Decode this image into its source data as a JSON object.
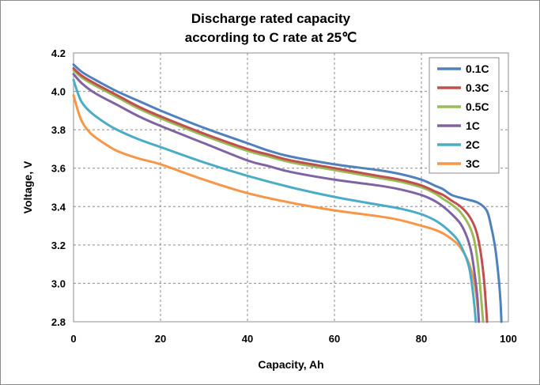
{
  "chart_data": {
    "type": "line",
    "title_line1": "Discharge rated capacity",
    "title_line2": "according to C rate at 25℃",
    "xlabel": "Capacity, Ah",
    "ylabel": "Voltage, V",
    "xlim": [
      0,
      100
    ],
    "ylim": [
      2.8,
      4.2
    ],
    "x_ticks": [
      "0",
      "20",
      "40",
      "60",
      "80",
      "100"
    ],
    "y_ticks": [
      "2.8",
      "3.0",
      "3.2",
      "3.4",
      "3.6",
      "3.8",
      "4.0",
      "4.2"
    ],
    "grid": "dashed",
    "legend_position": "top-right",
    "series": [
      {
        "name": "0.1C",
        "color": "#4f81bd",
        "points": [
          [
            0,
            4.14
          ],
          [
            2,
            4.1
          ],
          [
            5,
            4.06
          ],
          [
            10,
            4.0
          ],
          [
            15,
            3.95
          ],
          [
            20,
            3.9
          ],
          [
            30,
            3.81
          ],
          [
            40,
            3.73
          ],
          [
            45,
            3.69
          ],
          [
            50,
            3.66
          ],
          [
            60,
            3.62
          ],
          [
            70,
            3.59
          ],
          [
            75,
            3.57
          ],
          [
            80,
            3.54
          ],
          [
            83,
            3.51
          ],
          [
            85,
            3.49
          ],
          [
            87,
            3.46
          ],
          [
            90,
            3.44
          ],
          [
            93,
            3.42
          ],
          [
            95,
            3.38
          ],
          [
            96,
            3.3
          ],
          [
            97,
            3.18
          ],
          [
            97.8,
            3.02
          ],
          [
            98.2,
            2.9
          ],
          [
            98.4,
            2.8
          ]
        ]
      },
      {
        "name": "0.3C",
        "color": "#c0504d",
        "points": [
          [
            0,
            4.12
          ],
          [
            2,
            4.08
          ],
          [
            5,
            4.04
          ],
          [
            10,
            3.98
          ],
          [
            15,
            3.92
          ],
          [
            20,
            3.87
          ],
          [
            30,
            3.78
          ],
          [
            40,
            3.7
          ],
          [
            45,
            3.67
          ],
          [
            50,
            3.64
          ],
          [
            60,
            3.6
          ],
          [
            70,
            3.56
          ],
          [
            75,
            3.54
          ],
          [
            80,
            3.51
          ],
          [
            83,
            3.48
          ],
          [
            85,
            3.46
          ],
          [
            87,
            3.43
          ],
          [
            89,
            3.4
          ],
          [
            91,
            3.35
          ],
          [
            92.5,
            3.28
          ],
          [
            93.5,
            3.18
          ],
          [
            94.3,
            3.04
          ],
          [
            94.8,
            2.9
          ],
          [
            95.1,
            2.8
          ]
        ]
      },
      {
        "name": "0.5C",
        "color": "#9bbb59",
        "points": [
          [
            0,
            4.11
          ],
          [
            2,
            4.07
          ],
          [
            5,
            4.03
          ],
          [
            10,
            3.97
          ],
          [
            15,
            3.91
          ],
          [
            20,
            3.86
          ],
          [
            30,
            3.77
          ],
          [
            40,
            3.69
          ],
          [
            45,
            3.66
          ],
          [
            50,
            3.63
          ],
          [
            60,
            3.59
          ],
          [
            70,
            3.55
          ],
          [
            75,
            3.53
          ],
          [
            80,
            3.5
          ],
          [
            83,
            3.47
          ],
          [
            85,
            3.44
          ],
          [
            87,
            3.41
          ],
          [
            89,
            3.37
          ],
          [
            91,
            3.3
          ],
          [
            92.2,
            3.22
          ],
          [
            93.0,
            3.1
          ],
          [
            93.6,
            2.96
          ],
          [
            94.0,
            2.85
          ],
          [
            94.2,
            2.8
          ]
        ]
      },
      {
        "name": "1C",
        "color": "#8064a2",
        "points": [
          [
            0,
            4.09
          ],
          [
            2,
            4.04
          ],
          [
            5,
            3.99
          ],
          [
            10,
            3.93
          ],
          [
            15,
            3.87
          ],
          [
            20,
            3.82
          ],
          [
            30,
            3.73
          ],
          [
            40,
            3.64
          ],
          [
            45,
            3.61
          ],
          [
            50,
            3.58
          ],
          [
            60,
            3.54
          ],
          [
            70,
            3.51
          ],
          [
            75,
            3.49
          ],
          [
            80,
            3.46
          ],
          [
            83,
            3.43
          ],
          [
            85,
            3.4
          ],
          [
            87,
            3.36
          ],
          [
            89,
            3.31
          ],
          [
            90.5,
            3.24
          ],
          [
            91.5,
            3.16
          ],
          [
            92.3,
            3.04
          ],
          [
            92.9,
            2.92
          ],
          [
            93.2,
            2.8
          ]
        ]
      },
      {
        "name": "2C",
        "color": "#4bacc6",
        "points": [
          [
            0,
            4.06
          ],
          [
            1,
            3.99
          ],
          [
            2,
            3.94
          ],
          [
            4,
            3.89
          ],
          [
            7,
            3.84
          ],
          [
            10,
            3.8
          ],
          [
            15,
            3.75
          ],
          [
            20,
            3.71
          ],
          [
            30,
            3.63
          ],
          [
            40,
            3.56
          ],
          [
            50,
            3.5
          ],
          [
            60,
            3.45
          ],
          [
            70,
            3.41
          ],
          [
            75,
            3.39
          ],
          [
            80,
            3.36
          ],
          [
            83,
            3.33
          ],
          [
            85,
            3.3
          ],
          [
            87,
            3.26
          ],
          [
            88.5,
            3.22
          ],
          [
            90,
            3.15
          ],
          [
            91,
            3.08
          ],
          [
            91.7,
            2.98
          ],
          [
            92.2,
            2.88
          ],
          [
            92.5,
            2.8
          ]
        ]
      },
      {
        "name": "3C",
        "color": "#f79646",
        "points": [
          [
            0,
            3.98
          ],
          [
            1,
            3.9
          ],
          [
            2,
            3.84
          ],
          [
            4,
            3.78
          ],
          [
            7,
            3.73
          ],
          [
            10,
            3.69
          ],
          [
            15,
            3.65
          ],
          [
            20,
            3.62
          ],
          [
            30,
            3.54
          ],
          [
            40,
            3.47
          ],
          [
            50,
            3.42
          ],
          [
            60,
            3.38
          ],
          [
            70,
            3.35
          ],
          [
            75,
            3.33
          ],
          [
            80,
            3.3
          ],
          [
            83,
            3.28
          ],
          [
            85,
            3.26
          ],
          [
            87,
            3.23
          ],
          [
            88.5,
            3.2
          ],
          [
            90,
            3.15
          ],
          [
            91,
            3.1
          ],
          [
            92,
            3.02
          ],
          [
            92.6,
            2.94
          ],
          [
            93.0,
            2.86
          ],
          [
            93.2,
            2.8
          ]
        ]
      }
    ]
  }
}
